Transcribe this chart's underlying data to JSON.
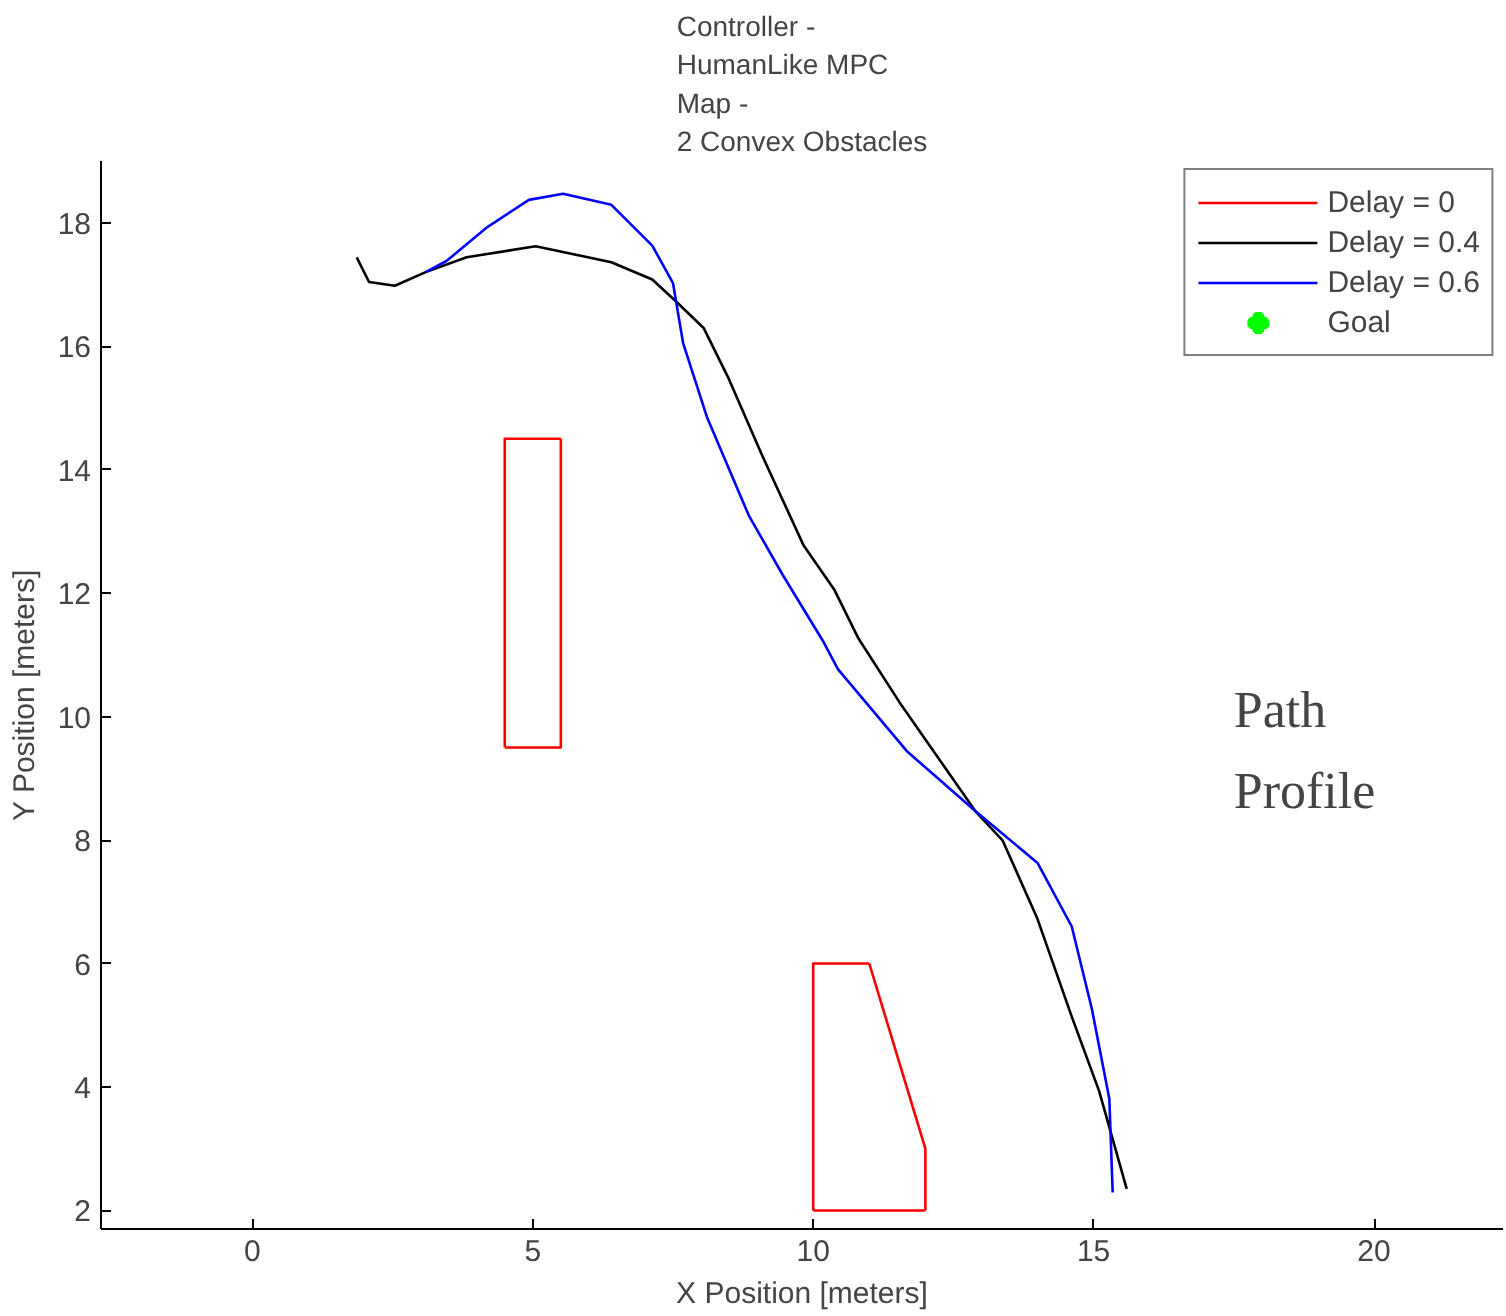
{
  "chart_data": {
    "type": "line",
    "title": "Controller -\nHumanLike MPC\nMap -\n2 Convex Obstacles",
    "xlabel": "X Position [meters]",
    "ylabel": "Y Position [meters]",
    "xlim": [
      -2.7,
      22.3
    ],
    "ylim": [
      1.7,
      19
    ],
    "xticks": [
      0,
      5,
      10,
      15,
      20
    ],
    "yticks": [
      2,
      4,
      6,
      8,
      10,
      12,
      14,
      16,
      18
    ],
    "grid": false,
    "legend": "top right",
    "line_style": "solid",
    "annotations": [
      "Path\nProfile"
    ],
    "series": [
      {
        "name": "Delay = 0",
        "color": "#ff0000",
        "type": "line"
      },
      {
        "name": "Delay = 0.4",
        "color": "#000000",
        "type": "line",
        "x": [
          1.86,
          2.08,
          2.54,
          3.09,
          3.82,
          5.05,
          6.4,
          7.13,
          7.56,
          8.05,
          8.48,
          9.09,
          9.83,
          10.38,
          10.81,
          11.54,
          12.89,
          13.38,
          14.0,
          14.61,
          15.1,
          15.59
        ],
        "values": [
          17.44,
          17.04,
          16.98,
          17.2,
          17.44,
          17.62,
          17.36,
          17.08,
          16.72,
          16.29,
          15.5,
          14.23,
          12.77,
          12.05,
          11.26,
          10.23,
          8.47,
          7.99,
          6.72,
          5.14,
          3.93,
          2.35
        ]
      },
      {
        "name": "Delay = 0.6",
        "color": "#0000ff",
        "type": "line",
        "x": [
          3.09,
          3.46,
          4.19,
          4.93,
          5.54,
          6.4,
          7.13,
          7.5,
          7.68,
          8.11,
          8.85,
          9.46,
          10.19,
          10.44,
          11.67,
          12.89,
          14.0,
          14.61,
          14.97,
          15.28,
          15.34
        ],
        "values": [
          17.2,
          17.38,
          17.93,
          18.37,
          18.47,
          18.29,
          17.63,
          17.02,
          16.05,
          14.84,
          13.26,
          12.29,
          11.2,
          10.77,
          9.44,
          8.47,
          7.63,
          6.6,
          5.26,
          3.81,
          2.29
        ]
      },
      {
        "name": "Goal",
        "color": "#00ff00",
        "type": "scatter",
        "marker": "cross"
      },
      {
        "color": "#ff0000",
        "type": "line",
        "x": [
          4.5,
          4.5,
          5.5
        ],
        "values": [
          9.5,
          14.5,
          14.5
        ]
      },
      {
        "color": "#ff0000",
        "type": "line",
        "x": [
          4.5,
          5.5,
          5.5
        ],
        "values": [
          9.5,
          9.5,
          14.5
        ]
      },
      {
        "color": "#ff0000",
        "type": "line",
        "x": [
          10,
          10,
          11
        ],
        "values": [
          2,
          6,
          6
        ]
      },
      {
        "color": "#ff0000",
        "type": "line",
        "x": [
          11,
          12,
          12
        ],
        "values": [
          6,
          3,
          2
        ]
      },
      {
        "color": "#ff0000",
        "type": "line",
        "x": [
          10,
          12
        ],
        "values": [
          2,
          2
        ]
      }
    ]
  }
}
